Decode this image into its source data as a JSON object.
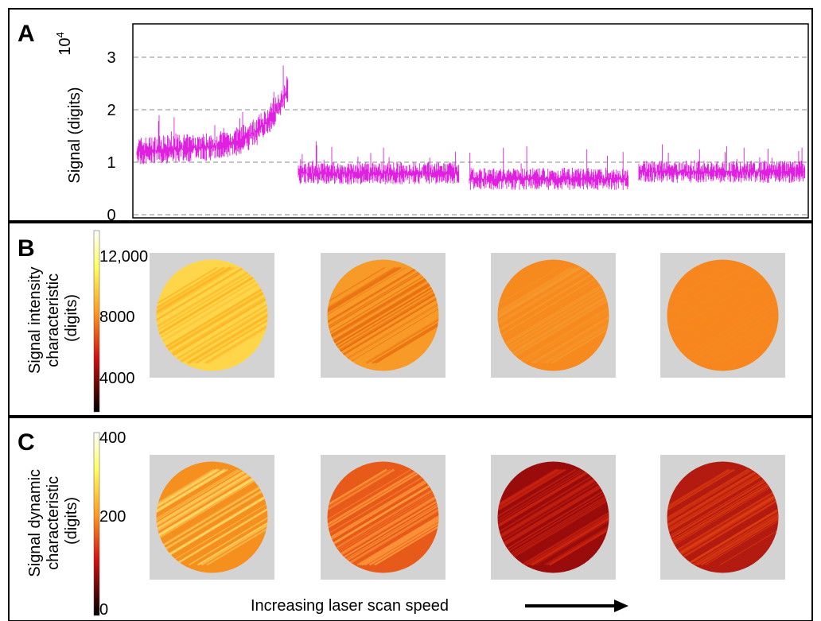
{
  "panels": [
    {
      "label": "A",
      "y_axis_label": "Signal (digits)",
      "y_exponent": {
        "base": "10",
        "power": "4"
      },
      "ticks": [
        "0",
        "1",
        "2",
        "3"
      ]
    },
    {
      "label": "B",
      "colorbar_label": [
        "Signal intensity",
        "characteristic",
        "(digits)"
      ],
      "ticks": [
        "4000",
        "8000",
        "12,000"
      ]
    },
    {
      "label": "C",
      "colorbar_label": [
        "Signal dynamic",
        "characteristic",
        "(digits)"
      ],
      "ticks": [
        "0",
        "200",
        "400"
      ]
    }
  ],
  "footer": {
    "text": "Increasing laser scan speed"
  }
}
